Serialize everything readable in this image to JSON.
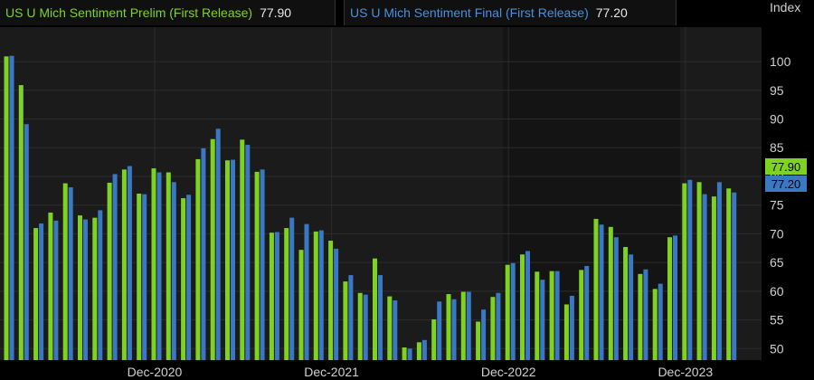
{
  "legend": {
    "prelim": {
      "label": "US U Mich Sentiment Prelim (First Release)",
      "value": "77.90"
    },
    "final": {
      "label": "US U Mich Sentiment Final (First Release)",
      "value": "77.20"
    }
  },
  "colors": {
    "prelim": "#7ed321",
    "final": "#3b78c3",
    "background": "#1b1b1b",
    "grid": "#2c2c2c",
    "text": "#d0d0d0"
  },
  "chart_data": {
    "type": "bar",
    "ylabel": "Index",
    "ylim": [
      48,
      106
    ],
    "yticks": [
      50,
      55,
      60,
      65,
      70,
      75,
      80,
      85,
      90,
      95,
      100
    ],
    "xtick_labels": [
      {
        "label": "Dec-2020",
        "index": 10
      },
      {
        "label": "Dec-2021",
        "index": 22
      },
      {
        "label": "Dec-2022",
        "index": 34
      },
      {
        "label": "Dec-2023",
        "index": 46
      }
    ],
    "series": [
      {
        "name": "US U Mich Sentiment Prelim (First Release)",
        "color": "#7ed321",
        "values": [
          100.9,
          95.9,
          71.0,
          73.7,
          78.8,
          73.2,
          72.8,
          78.9,
          81.2,
          77.0,
          81.4,
          80.7,
          76.2,
          83.0,
          86.5,
          82.8,
          86.4,
          80.8,
          70.2,
          71.0,
          67.2,
          70.4,
          68.8,
          61.7,
          59.7,
          65.7,
          59.1,
          50.2,
          51.1,
          55.1,
          59.5,
          59.9,
          54.7,
          59.0,
          64.6,
          66.4,
          63.4,
          63.5,
          57.7,
          63.7,
          72.6,
          71.2,
          67.7,
          63.0,
          60.4,
          69.4,
          78.8,
          79.0,
          76.5,
          77.9
        ]
      },
      {
        "name": "US U Mich Sentiment Final (First Release)",
        "color": "#3b78c3",
        "values": [
          101.0,
          89.1,
          71.8,
          72.3,
          78.1,
          72.5,
          74.1,
          80.4,
          81.8,
          76.9,
          80.7,
          79.0,
          76.8,
          84.9,
          88.3,
          82.9,
          85.5,
          81.2,
          70.3,
          72.8,
          71.7,
          70.6,
          67.4,
          62.8,
          59.4,
          62.8,
          58.4,
          50.0,
          51.5,
          58.2,
          58.6,
          59.9,
          56.8,
          59.7,
          64.9,
          67.0,
          62.0,
          63.5,
          59.2,
          64.4,
          71.6,
          69.4,
          66.4,
          63.8,
          61.3,
          69.7,
          79.4,
          76.9,
          79.0,
          77.2
        ]
      }
    ]
  }
}
